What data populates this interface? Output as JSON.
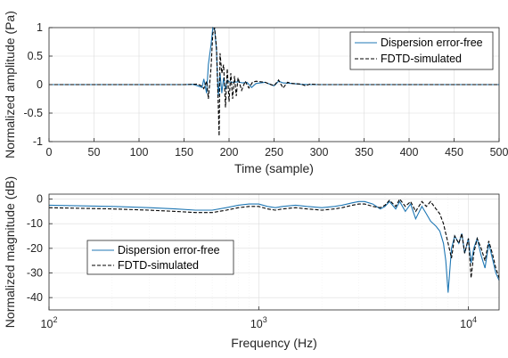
{
  "colors": {
    "series_solid": "#1f77b4",
    "series_dashed": "#000000",
    "axis": "#262626",
    "grid": "#dcdcdc"
  },
  "chart_data": [
    {
      "type": "line",
      "xlabel": "Time (sample)",
      "ylabel": "Normalized amplitude (Pa)",
      "xlim": [
        0,
        500
      ],
      "ylim": [
        -1,
        1
      ],
      "x_ticks": [
        "0",
        "50",
        "100",
        "150",
        "200",
        "250",
        "300",
        "350",
        "400",
        "450",
        "500"
      ],
      "y_ticks": [
        "1",
        "0.5",
        "0",
        "-0.5",
        "-1"
      ],
      "grid": true,
      "legend_position": "top-right",
      "series": [
        {
          "name": "Dispersion error-free",
          "style": "solid",
          "x": [
            0,
            150,
            160,
            165,
            170,
            172,
            175,
            177,
            180,
            182,
            184,
            186,
            188,
            190,
            192,
            194,
            196,
            198,
            200,
            205,
            210,
            215,
            220,
            225,
            230,
            240,
            250,
            255,
            260,
            270,
            280,
            290,
            300,
            500
          ],
          "y": [
            0,
            0,
            0.005,
            -0.02,
            -0.05,
            0.1,
            -0.15,
            0.35,
            0.7,
            1.0,
            0.98,
            0.6,
            -0.2,
            0.2,
            -0.15,
            0.12,
            -0.08,
            0.08,
            0.05,
            0.04,
            0.05,
            0.03,
            0.04,
            -0.05,
            0.02,
            0.04,
            -0.02,
            0.06,
            0.03,
            0.02,
            0.005,
            0,
            0,
            0
          ]
        },
        {
          "name": "FDTD-simulated",
          "style": "dashed",
          "x": [
            0,
            150,
            160,
            165,
            170,
            172,
            175,
            177,
            180,
            182,
            184,
            186,
            188,
            189,
            190,
            192,
            194,
            196,
            198,
            200,
            202,
            204,
            206,
            208,
            210,
            214,
            218,
            222,
            226,
            230,
            240,
            250,
            255,
            260,
            265,
            270,
            280,
            285,
            290,
            300,
            500
          ],
          "y": [
            0,
            0,
            0.005,
            0.01,
            -0.03,
            -0.07,
            0.06,
            -0.25,
            0.3,
            0.9,
            1.0,
            0.65,
            -0.35,
            -0.9,
            0.55,
            0.2,
            0.35,
            -0.4,
            0.28,
            -0.3,
            0.2,
            -0.25,
            0.15,
            -0.2,
            0.12,
            -0.1,
            0.06,
            -0.06,
            0.04,
            0.06,
            0.04,
            -0.02,
            0.08,
            -0.06,
            0.04,
            0.02,
            0.01,
            -0.02,
            0.01,
            0,
            0
          ]
        }
      ]
    },
    {
      "type": "line",
      "xlabel": "Frequency (Hz)",
      "ylabel": "Normalized magnitude (dB)",
      "xscale": "log",
      "xlim": [
        100,
        14000
      ],
      "ylim": [
        -45,
        2
      ],
      "x_ticks": [
        100,
        1000,
        10000
      ],
      "y_ticks": [
        "0",
        "-10",
        "-20",
        "-30",
        "-40"
      ],
      "grid": true,
      "legend_position": "bottom-left",
      "series": [
        {
          "name": "Dispersion error-free",
          "style": "solid",
          "x": [
            100,
            200,
            300,
            400,
            500,
            600,
            700,
            800,
            900,
            1000,
            1100,
            1200,
            1300,
            1500,
            1700,
            2000,
            2300,
            2500,
            2800,
            3000,
            3200,
            3500,
            3800,
            4000,
            4200,
            4500,
            4700,
            5000,
            5300,
            5600,
            6000,
            6300,
            6600,
            7000,
            7300,
            7600,
            7800,
            8000,
            8300,
            8600,
            9000,
            9300,
            9600,
            10000,
            10300,
            10600,
            11000,
            11500,
            12000,
            12500,
            13000,
            13500,
            14000
          ],
          "y": [
            -2.5,
            -3,
            -3.5,
            -4,
            -4.5,
            -4.5,
            -3.5,
            -2.5,
            -2,
            -2,
            -3,
            -3.5,
            -3,
            -2.5,
            -3,
            -3.5,
            -3,
            -2.5,
            -1.5,
            -1,
            -1,
            -2,
            -4,
            -3,
            -1,
            -4,
            -1,
            -5,
            -2,
            -8,
            -3,
            -6,
            -9,
            -11,
            -13,
            -18,
            -25,
            -38,
            -20,
            -15,
            -18,
            -14,
            -22,
            -16,
            -26,
            -20,
            -16,
            -23,
            -28,
            -18,
            -24,
            -30,
            -33
          ]
        },
        {
          "name": "FDTD-simulated",
          "style": "dashed",
          "x": [
            100,
            200,
            300,
            400,
            500,
            600,
            700,
            800,
            900,
            1000,
            1100,
            1200,
            1300,
            1500,
            1700,
            2000,
            2300,
            2500,
            2800,
            3000,
            3200,
            3500,
            3800,
            4000,
            4200,
            4500,
            4700,
            5000,
            5300,
            5600,
            6000,
            6300,
            6600,
            7000,
            7300,
            7600,
            7800,
            8000,
            8300,
            8600,
            9000,
            9300,
            9600,
            10000,
            10300,
            10600,
            11000,
            11500,
            12000,
            12500,
            13000,
            13500,
            14000
          ],
          "y": [
            -3.5,
            -4,
            -4.5,
            -5,
            -5.5,
            -5.5,
            -4.5,
            -3.5,
            -3,
            -3,
            -4,
            -4.5,
            -4,
            -3.5,
            -4,
            -4.5,
            -4,
            -3.5,
            -2.5,
            -2,
            -2,
            -3,
            -3.5,
            -2.5,
            -0.5,
            -3,
            0,
            -3,
            -1,
            -5,
            -1,
            -3,
            -1,
            -4,
            -6,
            -10,
            -14,
            -18,
            -24,
            -15,
            -18,
            -14,
            -22,
            -16,
            -32,
            -22,
            -16,
            -20,
            -25,
            -17,
            -22,
            -28,
            -32
          ]
        }
      ]
    }
  ]
}
